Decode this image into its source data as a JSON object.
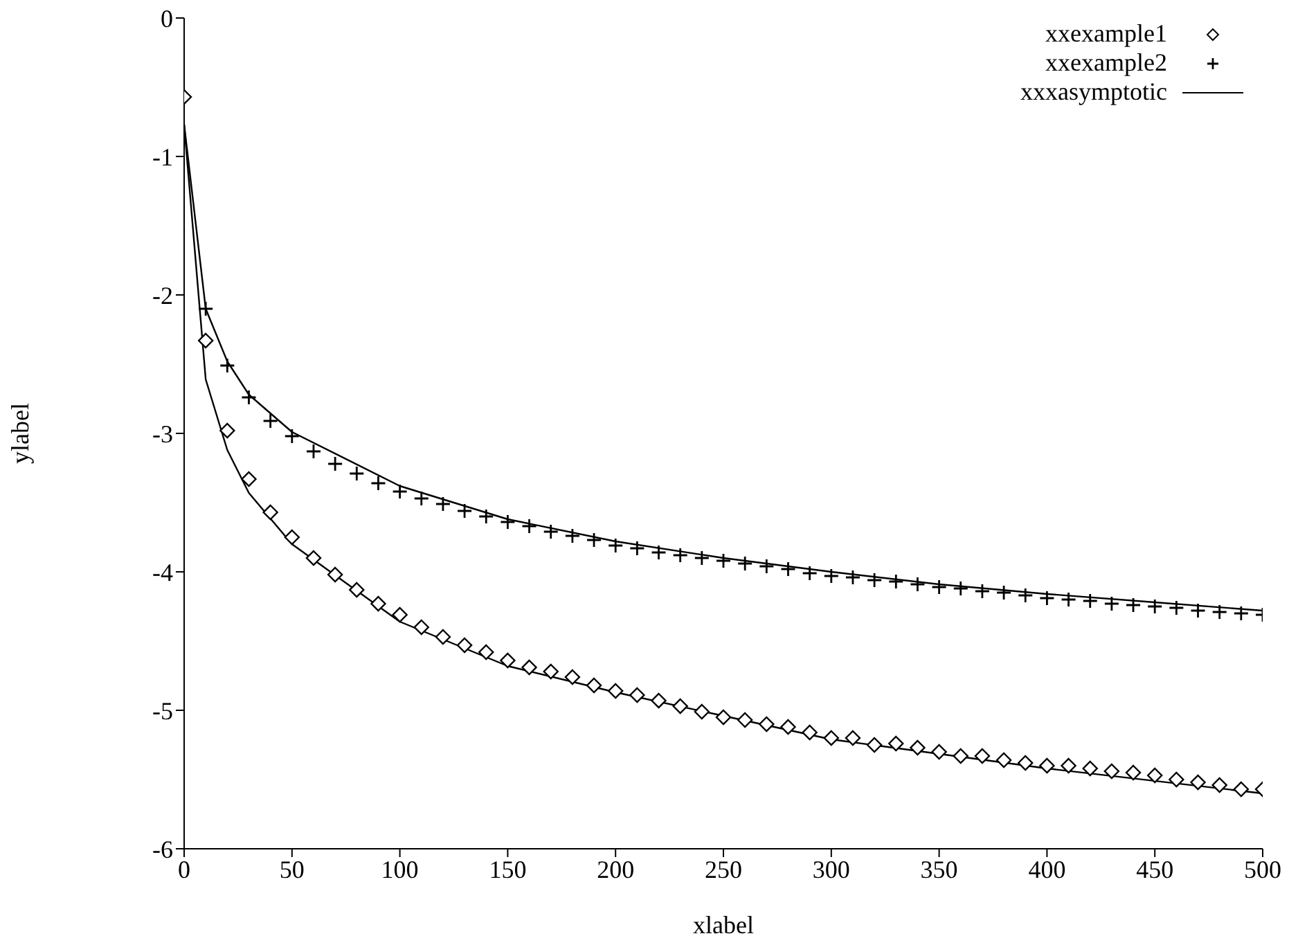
{
  "chart_data": {
    "type": "line",
    "xlabel": "xlabel",
    "ylabel": "ylabel",
    "xlim": [
      0,
      500
    ],
    "ylim": [
      -6,
      0
    ],
    "xticks": [
      0,
      50,
      100,
      150,
      200,
      250,
      300,
      350,
      400,
      450,
      500
    ],
    "yticks": [
      0,
      -1,
      -2,
      -3,
      -4,
      -5,
      -6
    ],
    "grid": false,
    "legend": "top right",
    "series": [
      {
        "name": "xxexample1",
        "type": "scatter",
        "marker": "diamond",
        "color": "#000000",
        "x": [
          0,
          10,
          20,
          30,
          40,
          50,
          60,
          70,
          80,
          90,
          100,
          110,
          120,
          130,
          140,
          150,
          160,
          170,
          180,
          190,
          200,
          210,
          220,
          230,
          240,
          250,
          260,
          270,
          280,
          290,
          300,
          310,
          320,
          330,
          340,
          350,
          360,
          370,
          380,
          390,
          400,
          410,
          420,
          430,
          440,
          450,
          460,
          470,
          480,
          490,
          500
        ],
        "values": [
          -0.57,
          -2.33,
          -2.98,
          -3.33,
          -3.57,
          -3.75,
          -3.9,
          -4.02,
          -4.13,
          -4.23,
          -4.31,
          -4.4,
          -4.47,
          -4.53,
          -4.58,
          -4.64,
          -4.69,
          -4.72,
          -4.76,
          -4.82,
          -4.86,
          -4.89,
          -4.93,
          -4.97,
          -5.01,
          -5.05,
          -5.07,
          -5.1,
          -5.12,
          -5.16,
          -5.2,
          -5.2,
          -5.25,
          -5.24,
          -5.27,
          -5.3,
          -5.33,
          -5.33,
          -5.36,
          -5.38,
          -5.4,
          -5.4,
          -5.42,
          -5.44,
          -5.45,
          -5.47,
          -5.5,
          -5.52,
          -5.54,
          -5.57,
          -5.57
        ]
      },
      {
        "name": "xxexample2",
        "type": "scatter",
        "marker": "cross",
        "color": "#000000",
        "x": [
          10,
          20,
          30,
          40,
          50,
          60,
          70,
          80,
          90,
          100,
          110,
          120,
          130,
          140,
          150,
          160,
          170,
          180,
          190,
          200,
          210,
          220,
          230,
          240,
          250,
          260,
          270,
          280,
          290,
          300,
          310,
          320,
          330,
          340,
          350,
          360,
          370,
          380,
          390,
          400,
          410,
          420,
          430,
          440,
          450,
          460,
          470,
          480,
          490,
          500
        ],
        "values": [
          -2.1,
          -2.51,
          -2.74,
          -2.91,
          -3.02,
          -3.13,
          -3.22,
          -3.29,
          -3.36,
          -3.42,
          -3.47,
          -3.51,
          -3.56,
          -3.6,
          -3.64,
          -3.67,
          -3.71,
          -3.74,
          -3.77,
          -3.81,
          -3.83,
          -3.86,
          -3.88,
          -3.9,
          -3.92,
          -3.94,
          -3.96,
          -3.98,
          -4.01,
          -4.03,
          -4.04,
          -4.06,
          -4.07,
          -4.09,
          -4.11,
          -4.12,
          -4.14,
          -4.15,
          -4.17,
          -4.19,
          -4.2,
          -4.21,
          -4.23,
          -4.24,
          -4.25,
          -4.26,
          -4.28,
          -4.29,
          -4.3,
          -4.31
        ]
      },
      {
        "name": "xxxasymptotic",
        "type": "line",
        "marker": "none",
        "line_style": "solid",
        "color": "#000000",
        "x": [
          0,
          10,
          20,
          30,
          50,
          100,
          150,
          200,
          250,
          300,
          400,
          500
        ],
        "values": [
          -0.77,
          -2.61,
          -3.12,
          -3.43,
          -3.8,
          -4.36,
          -4.68,
          -4.87,
          -5.04,
          -5.21,
          -5.42,
          -5.6
        ]
      },
      {
        "type": "line",
        "marker": "none",
        "line_style": "solid",
        "color": "#000000",
        "x": [
          0,
          10,
          20,
          30,
          50,
          100,
          150,
          200,
          250,
          300,
          350,
          400,
          450,
          500
        ],
        "values": [
          -0.77,
          -2.1,
          -2.48,
          -2.72,
          -2.99,
          -3.38,
          -3.62,
          -3.78,
          -3.9,
          -4.0,
          -4.09,
          -4.16,
          -4.22,
          -4.28
        ]
      }
    ]
  }
}
